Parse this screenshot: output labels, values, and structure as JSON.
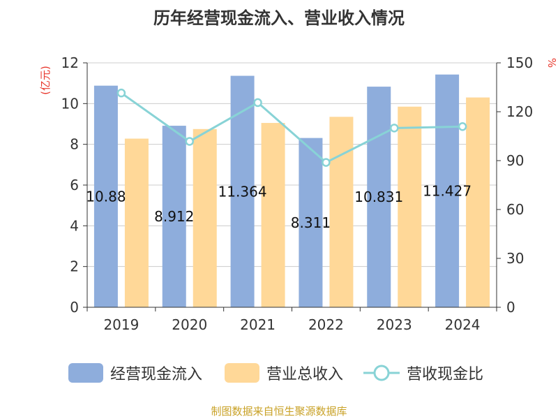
{
  "chart_data": {
    "type": "bar",
    "title": "历年经营现金流入、营业收入情况",
    "categories": [
      "2019",
      "2020",
      "2021",
      "2022",
      "2023",
      "2024"
    ],
    "series": [
      {
        "name": "经营现金流入",
        "type": "bar",
        "axis": "left",
        "color": "#8eaddc",
        "values": [
          10.88,
          8.912,
          11.364,
          8.311,
          10.831,
          11.427
        ],
        "labels": [
          "10.88",
          "8.912",
          "11.364",
          "8.311",
          "10.831",
          "11.427"
        ]
      },
      {
        "name": "营业总收入",
        "type": "bar",
        "axis": "left",
        "color": "#ffd898",
        "values": [
          8.28,
          8.75,
          9.05,
          9.35,
          9.85,
          10.3
        ]
      },
      {
        "name": "营收现金比",
        "type": "line",
        "axis": "right",
        "color": "#88d3d6",
        "values": [
          131.5,
          101.8,
          125.6,
          88.9,
          110.0,
          110.9
        ]
      }
    ],
    "y_left": {
      "label": "(亿元)",
      "ylim": [
        0,
        12
      ],
      "ticks": [
        "0",
        "2",
        "4",
        "6",
        "8",
        "10",
        "12"
      ]
    },
    "y_right": {
      "label": "%",
      "ylim": [
        0,
        150
      ],
      "ticks": [
        "0",
        "30",
        "60",
        "90",
        "120",
        "150"
      ]
    },
    "grid": true,
    "legend_position": "bottom",
    "source": "制图数据来自恒生聚源数据库"
  }
}
